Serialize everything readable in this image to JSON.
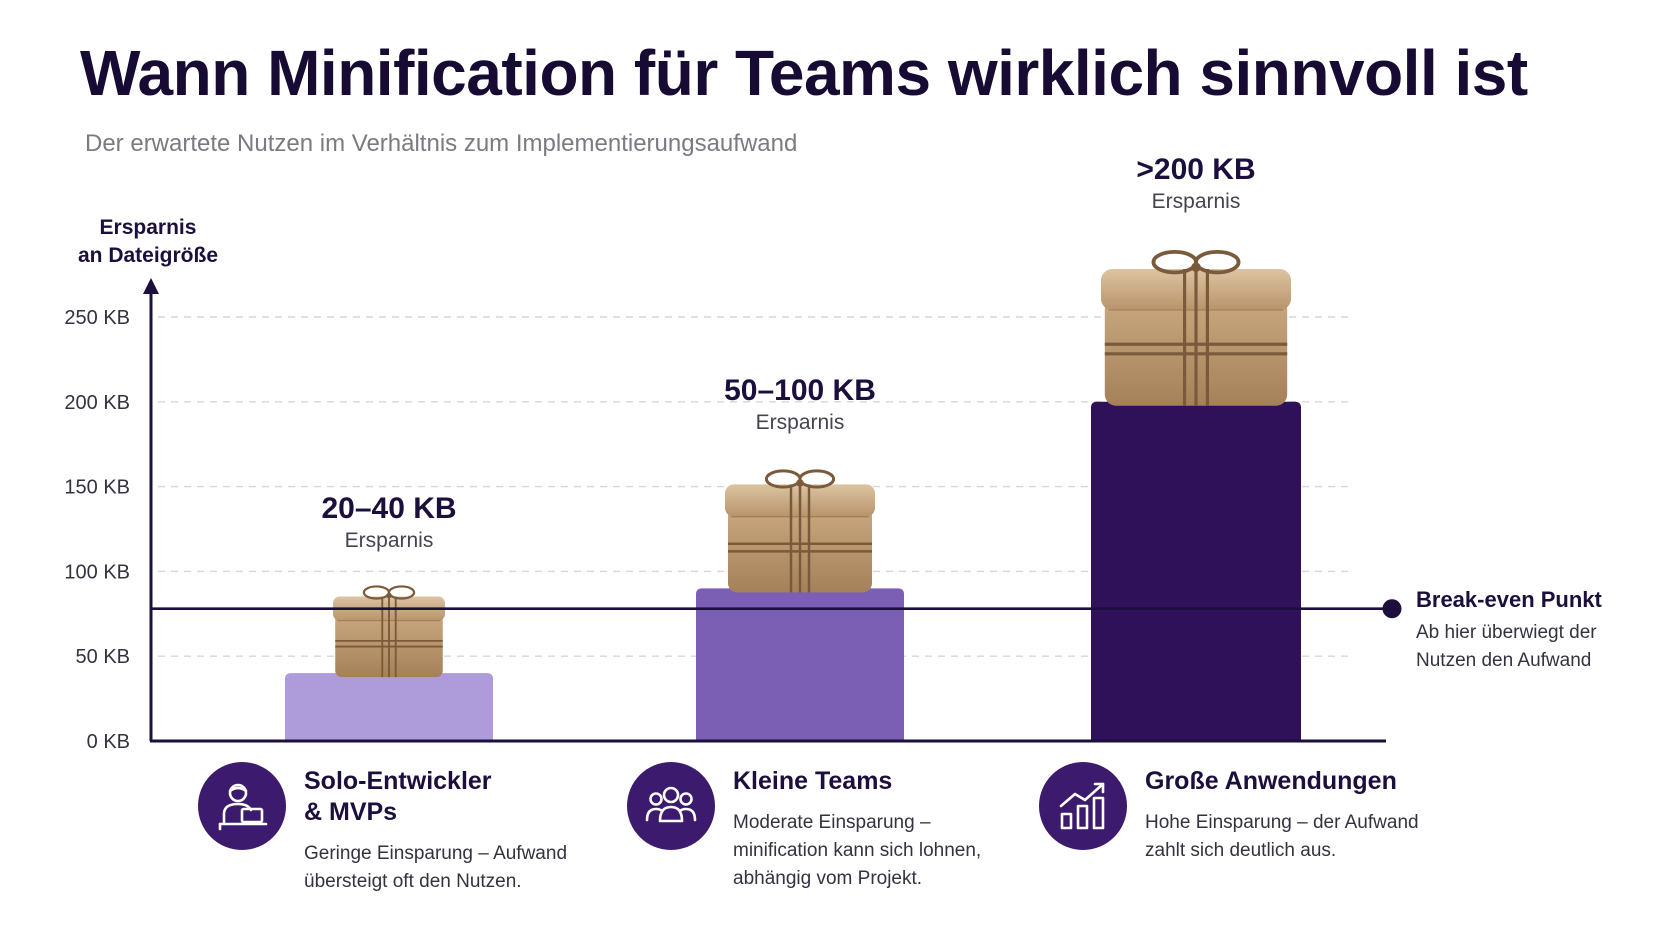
{
  "title": "Wann Minification für Teams wirklich sinnvoll ist",
  "subtitle": "Der erwartete Nutzen im Verhältnis zum Implementierungsaufwand",
  "colors": {
    "bar_light": "#ae9bd9",
    "bar_mid": "#7b5fb5",
    "bar_dark": "#2e1159",
    "axis": "#1c0f3d",
    "icon_circle": "#3c1a6e"
  },
  "chart_data": {
    "type": "bar",
    "ylabel_line1": "Ersparnis",
    "ylabel_line2": "an Dateigröße",
    "yticks": [
      {
        "value": 0,
        "label": "0 KB"
      },
      {
        "value": 50,
        "label": "50 KB"
      },
      {
        "value": 100,
        "label": "100 KB"
      },
      {
        "value": 150,
        "label": "150 KB"
      },
      {
        "value": 200,
        "label": "200 KB"
      },
      {
        "value": 250,
        "label": "250 KB"
      }
    ],
    "ylim": [
      0,
      250
    ],
    "grid": true,
    "categories": [
      "Solo-Entwickler & MVPs",
      "Kleine Teams",
      "Große Anwendungen"
    ],
    "values": [
      40,
      90,
      200
    ],
    "bar_colors": [
      "#ae9bd9",
      "#7b5fb5",
      "#2e1159"
    ],
    "value_labels": [
      "20–40 KB",
      "50–100 KB",
      ">200 KB"
    ],
    "value_sublabel": "Ersparnis",
    "break_even": {
      "value": 78,
      "label": "Break-even Punkt",
      "description_line1": "Ab hier überwiegt der",
      "description_line2": "Nutzen den Aufwand"
    }
  },
  "categories": [
    {
      "icon": "developer-laptop-icon",
      "title_line1": "Solo-Entwickler",
      "title_line2": "& MVPs",
      "desc_line1": "Geringe Einsparung – Aufwand",
      "desc_line2": "übersteigt oft den Nutzen."
    },
    {
      "icon": "team-group-icon",
      "title_line1": "Kleine Teams",
      "desc_line1": "Moderate Einsparung –",
      "desc_line2": "minification kann sich lohnen,",
      "desc_line3": "abhängig vom Projekt."
    },
    {
      "icon": "growth-chart-icon",
      "title_line1": "Große Anwendungen",
      "desc_line1": "Hohe Einsparung – der Aufwand",
      "desc_line2": "zahlt sich deutlich aus."
    }
  ]
}
